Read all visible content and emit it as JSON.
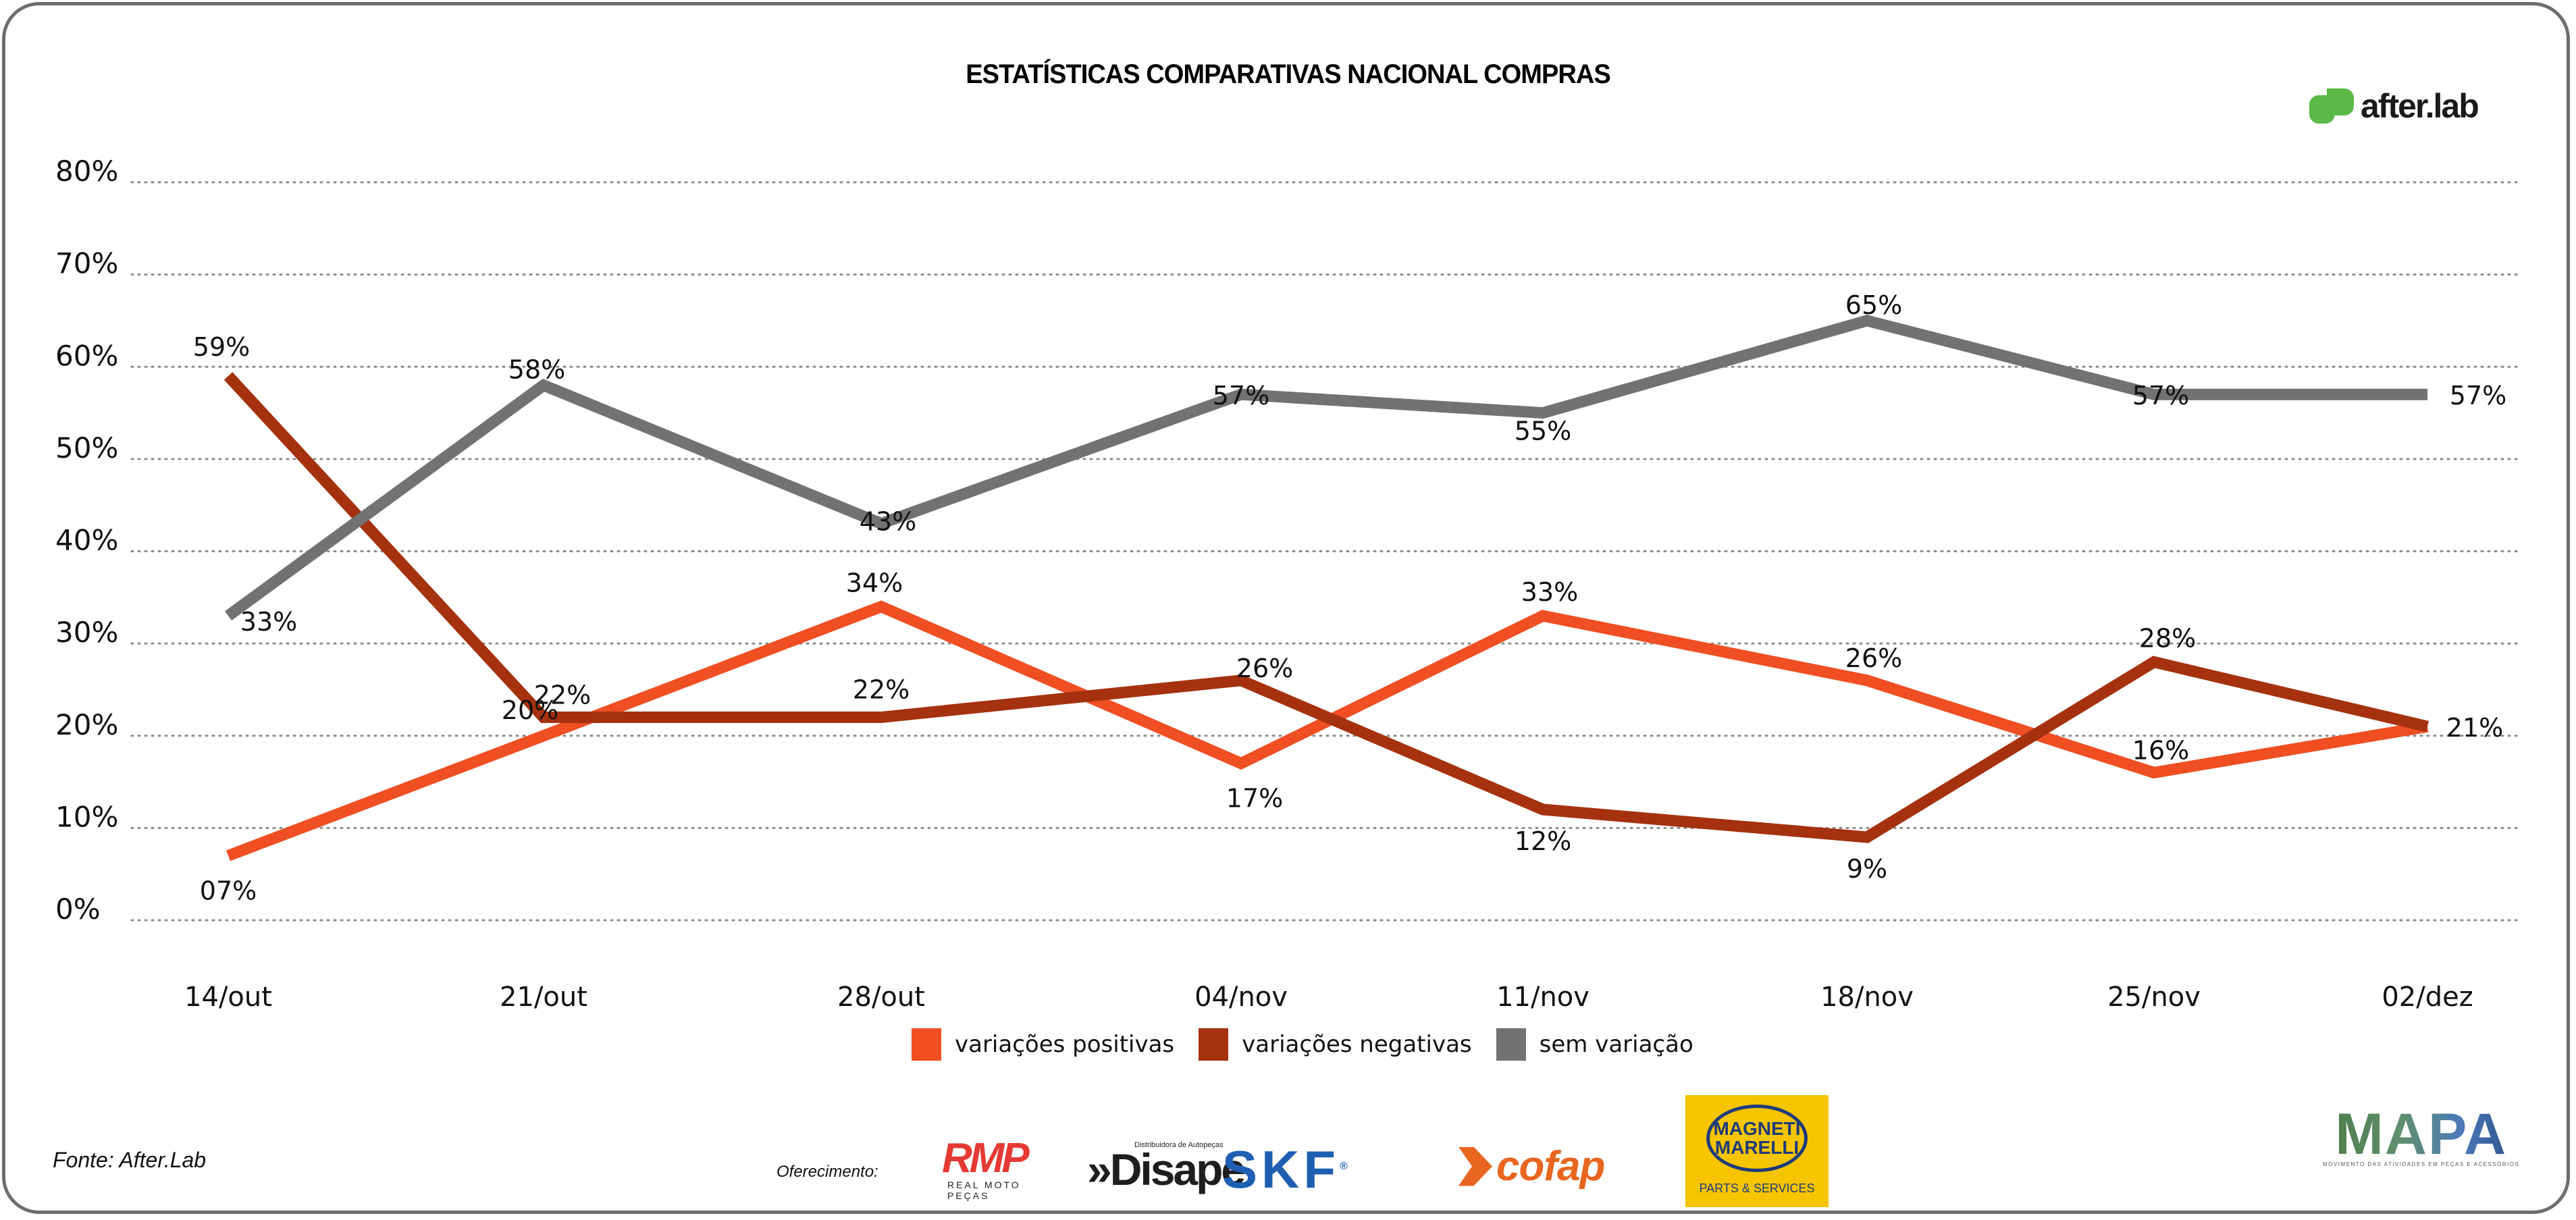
{
  "header": {
    "title": "ESTATÍSTICAS COMPARATIVAS NACIONAL COMPRAS",
    "brand": "after.lab",
    "brand_color": "#5ab947"
  },
  "chart_data": {
    "type": "line",
    "title": "ESTATÍSTICAS COMPARATIVAS NACIONAL COMPRAS",
    "xlabel": "",
    "ylabel": "",
    "ylim": [
      0,
      80
    ],
    "yticks": [
      "0%",
      "10%",
      "20%",
      "30%",
      "40%",
      "50%",
      "60%",
      "70%",
      "80%"
    ],
    "grid": "horizontal dotted",
    "categories": [
      "14/out",
      "21/out",
      "28/out",
      "04/nov",
      "11/nov",
      "18/nov",
      "25/nov",
      "02/dez"
    ],
    "legend_position": "bottom-center",
    "series": [
      {
        "name": "variações positivas",
        "color": "#f04e23",
        "values": [
          7,
          20,
          34,
          17,
          33,
          26,
          16,
          21
        ],
        "labels": [
          "07%",
          "20%",
          "34%",
          "17%",
          "33%",
          "26%",
          "16%",
          "21%"
        ]
      },
      {
        "name": "variações negativas",
        "color": "#a5310f",
        "values": [
          59,
          22,
          22,
          26,
          12,
          9,
          28,
          21
        ],
        "labels": [
          "59%",
          "22%",
          "22%",
          "26%",
          "12%",
          "9%",
          "28%",
          ""
        ]
      },
      {
        "name": "sem variação",
        "color": "#727272",
        "values": [
          33,
          58,
          43,
          57,
          55,
          65,
          57,
          57
        ],
        "labels": [
          "33%",
          "58%",
          "43%",
          "57%",
          "55%",
          "65%",
          "57%",
          "57%"
        ]
      }
    ]
  },
  "footer": {
    "source": "Fonte: After.Lab",
    "sponsor_label": "Oferecimento:",
    "sponsors": {
      "rmp": "RMP",
      "rmp_sub": "REAL MOTO PEÇAS",
      "disape": "»Disape",
      "disape_sub": "Distribuidora de Autopeças",
      "skf": "SKF",
      "cofap": "cofap",
      "magneti_line1": "MAGNETI",
      "magneti_line2": "MARELLI",
      "magneti_sub": "PARTS & SERVICES",
      "mapa": "MAPA",
      "mapa_sub": "MOVIMENTO DAS ATIVIDADES EM PEÇAS E ACESSÓRIOS"
    }
  }
}
